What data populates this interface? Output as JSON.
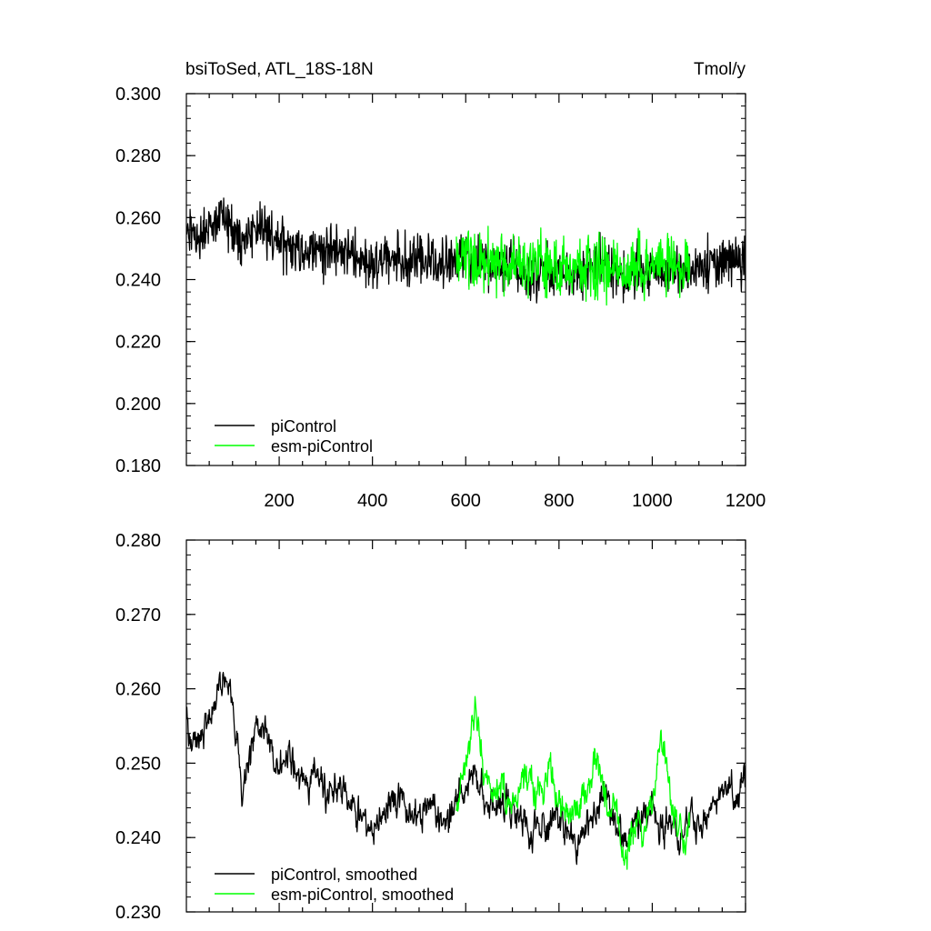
{
  "chart_data": [
    {
      "type": "line",
      "title": "bsiToSed, ATL_18S-18N",
      "units": "Tmol/y",
      "xlim": [
        1,
        1200
      ],
      "ylim": [
        0.18,
        0.3
      ],
      "x_ticks": [
        200,
        400,
        600,
        800,
        1000,
        1200
      ],
      "x_tick_labels": [
        "200",
        "400",
        "600",
        "800",
        "1000",
        "1200"
      ],
      "y_ticks": [
        0.18,
        0.2,
        0.22,
        0.24,
        0.26,
        0.28,
        0.3
      ],
      "y_tick_labels": [
        "0.180",
        "0.200",
        "0.220",
        "0.240",
        "0.260",
        "0.280",
        "0.300"
      ],
      "grid": false,
      "legend_position": "bottom-left",
      "series": [
        {
          "name": "piControl",
          "color": "#000000",
          "x": [
            1,
            20,
            40,
            60,
            80,
            100,
            120,
            140,
            160,
            180,
            200,
            220,
            240,
            260,
            280,
            300,
            320,
            340,
            360,
            380,
            400,
            420,
            440,
            460,
            480,
            500,
            520,
            540,
            560,
            580,
            600,
            620,
            640,
            660,
            680,
            700,
            720,
            740,
            760,
            780,
            800,
            820,
            840,
            860,
            880,
            900,
            920,
            940,
            960,
            980,
            1000,
            1020,
            1040,
            1060,
            1080,
            1100,
            1120,
            1140,
            1160,
            1180,
            1200
          ],
          "y": [
            0.255,
            0.254,
            0.256,
            0.257,
            0.259,
            0.258,
            0.252,
            0.256,
            0.257,
            0.253,
            0.251,
            0.252,
            0.25,
            0.249,
            0.251,
            0.248,
            0.25,
            0.249,
            0.247,
            0.246,
            0.245,
            0.246,
            0.248,
            0.247,
            0.245,
            0.246,
            0.246,
            0.244,
            0.245,
            0.247,
            0.246,
            0.246,
            0.245,
            0.244,
            0.244,
            0.245,
            0.243,
            0.242,
            0.244,
            0.243,
            0.244,
            0.242,
            0.241,
            0.243,
            0.243,
            0.245,
            0.242,
            0.241,
            0.242,
            0.243,
            0.244,
            0.243,
            0.243,
            0.242,
            0.244,
            0.244,
            0.245,
            0.246,
            0.246,
            0.245,
            0.246
          ],
          "amplitude": 0.012
        },
        {
          "name": "esm-piControl",
          "color": "#00ff00",
          "x": [
            580,
            600,
            620,
            640,
            660,
            680,
            700,
            720,
            740,
            760,
            780,
            800,
            820,
            840,
            860,
            880,
            900,
            920,
            940,
            960,
            980,
            1000,
            1020,
            1040,
            1060,
            1080
          ],
          "y": [
            0.245,
            0.249,
            0.247,
            0.246,
            0.246,
            0.245,
            0.244,
            0.246,
            0.245,
            0.244,
            0.245,
            0.243,
            0.244,
            0.244,
            0.243,
            0.243,
            0.244,
            0.245,
            0.243,
            0.243,
            0.244,
            0.245,
            0.245,
            0.244,
            0.243,
            0.244
          ],
          "amplitude": 0.014
        }
      ]
    },
    {
      "type": "line",
      "xlim": [
        1,
        1200
      ],
      "ylim": [
        0.23,
        0.28
      ],
      "x_ticks": [
        200,
        400,
        600,
        800,
        1000,
        1200
      ],
      "y_ticks": [
        0.23,
        0.24,
        0.25,
        0.26,
        0.27,
        0.28
      ],
      "y_tick_labels": [
        "0.230",
        "0.240",
        "0.250",
        "0.260",
        "0.270",
        "0.280"
      ],
      "grid": false,
      "legend_position": "bottom-left",
      "series": [
        {
          "name": "piControl, smoothed",
          "color": "#000000",
          "x": [
            1,
            20,
            40,
            60,
            80,
            100,
            120,
            140,
            160,
            180,
            200,
            220,
            240,
            260,
            280,
            300,
            320,
            340,
            360,
            380,
            400,
            420,
            440,
            460,
            480,
            500,
            520,
            540,
            560,
            580,
            600,
            620,
            640,
            660,
            680,
            700,
            720,
            740,
            760,
            780,
            800,
            820,
            840,
            860,
            880,
            900,
            920,
            940,
            960,
            980,
            1000,
            1020,
            1040,
            1060,
            1080,
            1100,
            1120,
            1140,
            1160,
            1180,
            1200
          ],
          "y": [
            0.256,
            0.253,
            0.254,
            0.258,
            0.262,
            0.258,
            0.246,
            0.253,
            0.256,
            0.252,
            0.249,
            0.25,
            0.248,
            0.247,
            0.249,
            0.245,
            0.247,
            0.246,
            0.244,
            0.242,
            0.241,
            0.243,
            0.246,
            0.245,
            0.243,
            0.243,
            0.244,
            0.243,
            0.242,
            0.245,
            0.247,
            0.249,
            0.246,
            0.245,
            0.245,
            0.244,
            0.243,
            0.241,
            0.242,
            0.241,
            0.243,
            0.241,
            0.239,
            0.242,
            0.243,
            0.247,
            0.241,
            0.239,
            0.241,
            0.243,
            0.243,
            0.242,
            0.242,
            0.24,
            0.243,
            0.241,
            0.243,
            0.245,
            0.247,
            0.244,
            0.25
          ],
          "amplitude": 0.004
        },
        {
          "name": "esm-piControl, smoothed",
          "color": "#00ff00",
          "x": [
            580,
            600,
            620,
            640,
            660,
            680,
            700,
            720,
            740,
            760,
            780,
            800,
            820,
            840,
            860,
            880,
            900,
            920,
            940,
            960,
            980,
            1000,
            1020,
            1040,
            1060,
            1080
          ],
          "y": [
            0.243,
            0.25,
            0.258,
            0.248,
            0.246,
            0.247,
            0.244,
            0.248,
            0.247,
            0.245,
            0.25,
            0.244,
            0.242,
            0.243,
            0.246,
            0.251,
            0.245,
            0.244,
            0.236,
            0.242,
            0.24,
            0.244,
            0.254,
            0.245,
            0.24,
            0.24
          ],
          "amplitude": 0.004
        }
      ]
    }
  ]
}
